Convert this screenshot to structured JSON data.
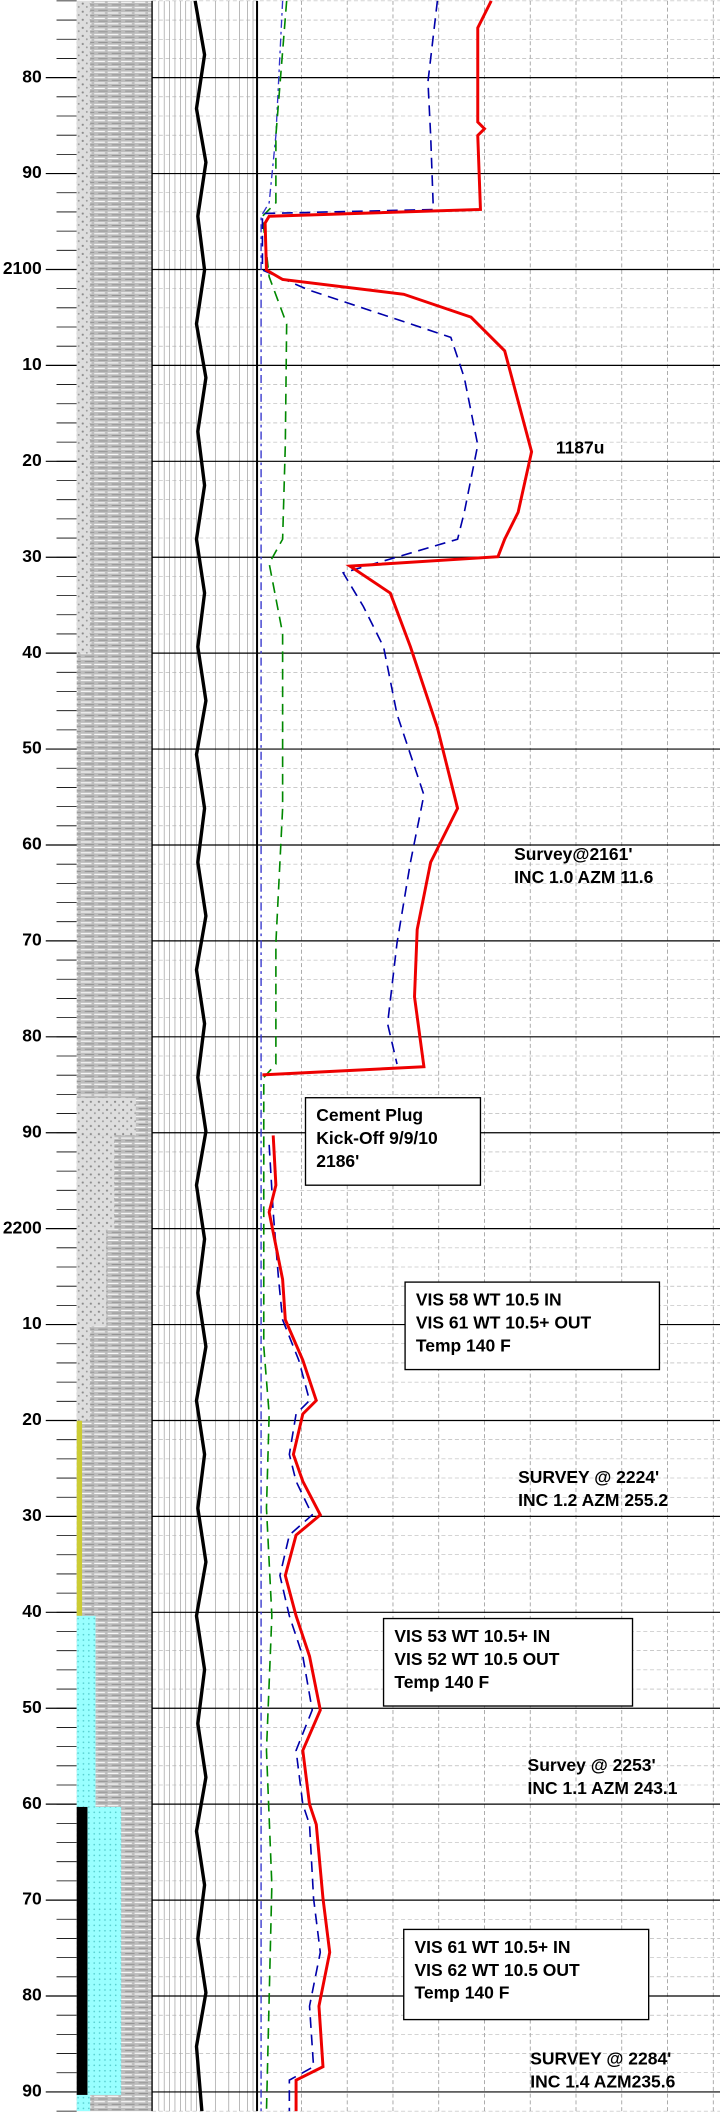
{
  "depth_axis": {
    "range": [
      2072,
      2292
    ],
    "ticks": [
      {
        "value": 2080,
        "label": "80"
      },
      {
        "value": 2090,
        "label": "90"
      },
      2100,
      {
        "value": 2110,
        "label": "10"
      },
      {
        "value": 2120,
        "label": "20"
      },
      {
        "value": 2130,
        "label": "30"
      },
      {
        "value": 2140,
        "label": "40"
      },
      {
        "value": 2150,
        "label": "50"
      },
      {
        "value": 2160,
        "label": "60"
      },
      {
        "value": 2170,
        "label": "70"
      },
      {
        "value": 2180,
        "label": "80"
      },
      {
        "value": 2190,
        "label": "90"
      },
      2200,
      {
        "value": 2210,
        "label": "10"
      },
      {
        "value": 2220,
        "label": "20"
      },
      {
        "value": 2230,
        "label": "30"
      },
      {
        "value": 2240,
        "label": "40"
      },
      {
        "value": 2250,
        "label": "50"
      },
      {
        "value": 2260,
        "label": "60"
      },
      {
        "value": 2270,
        "label": "70"
      },
      {
        "value": 2280,
        "label": "80"
      },
      {
        "value": 2290,
        "label": "90"
      }
    ]
  },
  "annotations": [
    {
      "lines": [
        "1187u"
      ],
      "boxed": false
    },
    {
      "lines": [
        "Survey@2161'",
        "INC 1.0 AZM 11.6"
      ],
      "boxed": false
    },
    {
      "lines": [
        "Cement Plug",
        "Kick-Off 9/9/10",
        "2186'"
      ],
      "boxed": true
    },
    {
      "lines": [
        "VIS 58 WT 10.5    IN",
        "VIS 61 WT 10.5+  OUT",
        "Temp 140 F"
      ],
      "boxed": true
    },
    {
      "lines": [
        "SURVEY @ 2224'",
        "INC 1.2  AZM 255.2"
      ],
      "boxed": false
    },
    {
      "lines": [
        "VIS 53 WT 10.5+  IN",
        "VIS 52 WT 10.5    OUT",
        "Temp 140 F"
      ],
      "boxed": true
    },
    {
      "lines": [
        "Survey @ 2253'",
        "INC 1.1 AZM 243.1"
      ],
      "boxed": false
    },
    {
      "lines": [
        "VIS 61 WT 10.5+  IN",
        " VIS 62 WT 10.5    OUT",
        "Temp 140 F"
      ],
      "boxed": true
    },
    {
      "lines": [
        "SURVEY @ 2284'",
        "INC 1.4  AZM235.6"
      ],
      "boxed": false
    }
  ]
}
